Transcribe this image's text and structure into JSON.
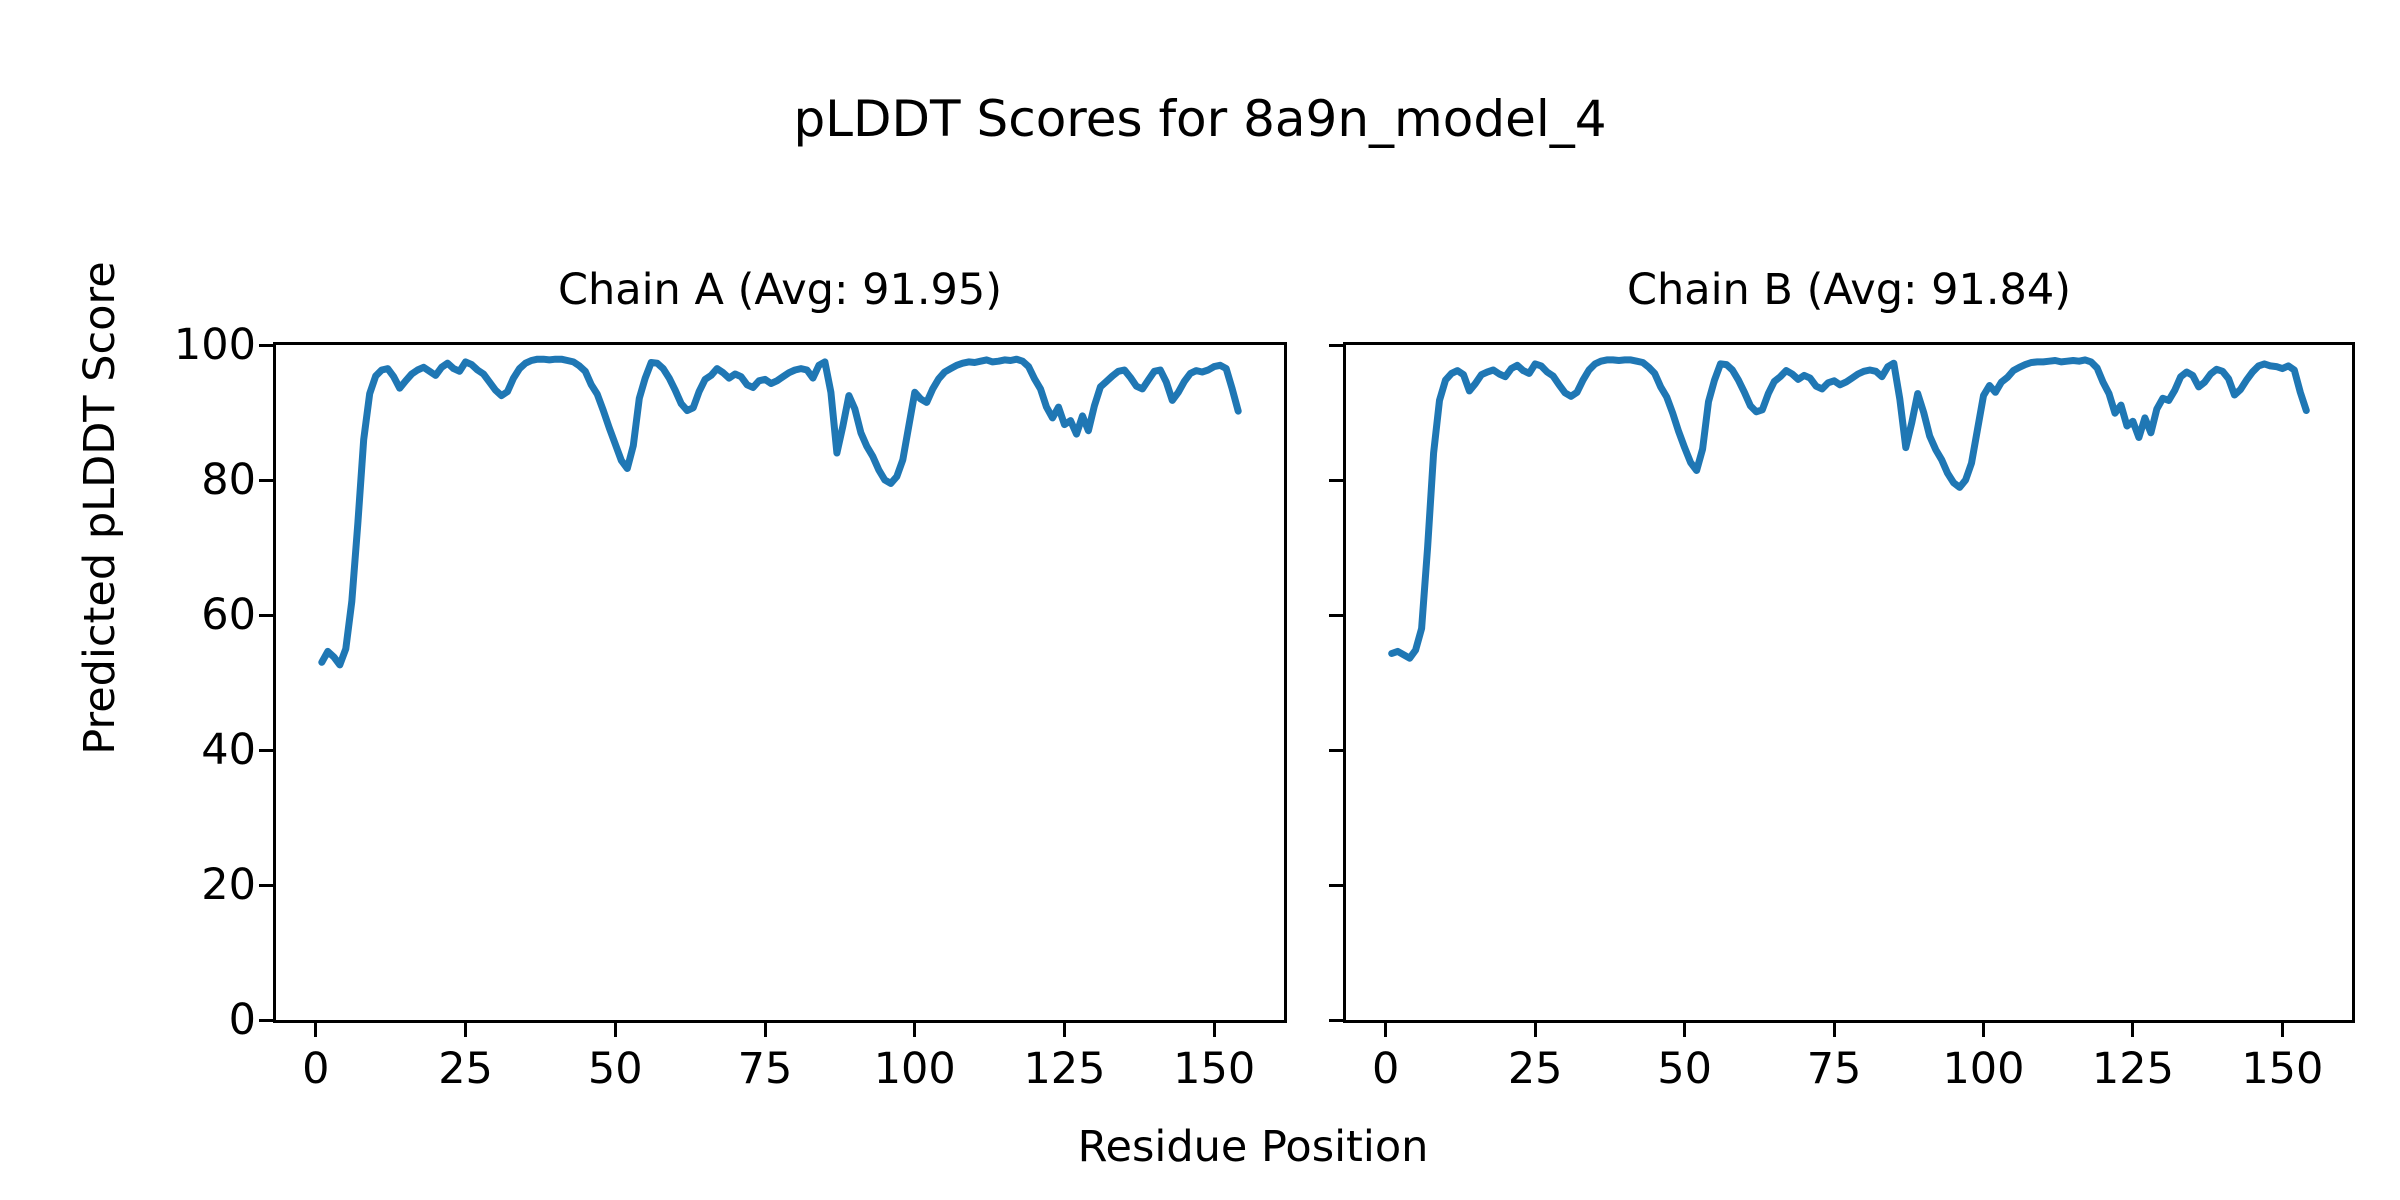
{
  "figure": {
    "title": "pLDDT Scores for 8a9n_model_4",
    "x_axis_label": "Residue Position",
    "y_axis_label": "Predicted pLDDT Score",
    "background_color": "#ffffff",
    "axis_color": "#000000"
  },
  "chart_data": [
    {
      "type": "line",
      "title": "Chain A (Avg: 91.95)",
      "chain": "A",
      "avg": 91.95,
      "line_color": "#1f77b4",
      "x_start": 1,
      "xlim": [
        -6.65,
        161.65
      ],
      "ylim": [
        0,
        100
      ],
      "x_ticks": [
        0,
        25,
        50,
        75,
        100,
        125,
        150
      ],
      "y_ticks": [
        0,
        20,
        40,
        60,
        80,
        100
      ],
      "y_tick_labels": true,
      "grid": false,
      "values": [
        53.0,
        54.6,
        53.8,
        52.6,
        55.0,
        62.0,
        73.5,
        86.0,
        92.8,
        95.4,
        96.3,
        96.5,
        95.3,
        93.6,
        94.7,
        95.7,
        96.3,
        96.7,
        96.1,
        95.5,
        96.7,
        97.3,
        96.5,
        96.1,
        97.5,
        97.1,
        96.3,
        95.7,
        94.5,
        93.3,
        92.5,
        93.1,
        95.1,
        96.5,
        97.3,
        97.7,
        97.9,
        97.9,
        97.8,
        97.9,
        97.9,
        97.7,
        97.5,
        96.9,
        96.1,
        94.1,
        92.7,
        90.3,
        87.7,
        85.3,
        82.9,
        81.7,
        85.1,
        92.1,
        95.1,
        97.4,
        97.3,
        96.5,
        95.1,
        93.3,
        91.3,
        90.3,
        90.7,
        93.1,
        94.9,
        95.5,
        96.5,
        95.9,
        95.1,
        95.7,
        95.3,
        94.1,
        93.7,
        94.7,
        94.9,
        94.3,
        94.7,
        95.3,
        95.9,
        96.3,
        96.5,
        96.3,
        95.1,
        97.0,
        97.5,
        93.0,
        84.0,
        88.0,
        92.5,
        90.5,
        87.0,
        85.0,
        83.5,
        81.5,
        80.0,
        79.5,
        80.5,
        83.0,
        88.0,
        93.0,
        92.0,
        91.5,
        93.5,
        95.0,
        96.0,
        96.5,
        97.0,
        97.3,
        97.5,
        97.4,
        97.6,
        97.8,
        97.5,
        97.6,
        97.8,
        97.7,
        97.9,
        97.6,
        96.8,
        95.0,
        93.5,
        90.8,
        89.2,
        90.8,
        88.2,
        88.8,
        86.8,
        89.5,
        87.3,
        91.0,
        93.8,
        94.6,
        95.4,
        96.1,
        96.3,
        95.2,
        93.9,
        93.5,
        94.8,
        96.1,
        96.3,
        94.5,
        91.8,
        93.0,
        94.6,
        95.8,
        96.2,
        96.0,
        96.3,
        96.8,
        97.0,
        96.5,
        93.5,
        90.2
      ]
    },
    {
      "type": "line",
      "title": "Chain B (Avg: 91.84)",
      "chain": "B",
      "avg": 91.84,
      "line_color": "#1f77b4",
      "x_start": 1,
      "xlim": [
        -6.65,
        161.65
      ],
      "ylim": [
        0,
        100
      ],
      "x_ticks": [
        0,
        25,
        50,
        75,
        100,
        125,
        150
      ],
      "y_ticks": [
        0,
        20,
        40,
        60,
        80,
        100
      ],
      "y_tick_labels": false,
      "grid": false,
      "values": [
        54.3,
        54.6,
        54.1,
        53.6,
        54.8,
        58.0,
        70.0,
        84.0,
        91.8,
        94.8,
        95.8,
        96.2,
        95.6,
        93.2,
        94.3,
        95.6,
        96.0,
        96.3,
        95.7,
        95.3,
        96.5,
        97.0,
        96.2,
        95.8,
        97.2,
        96.9,
        96.0,
        95.4,
        94.1,
        92.9,
        92.4,
        93.0,
        94.8,
        96.3,
        97.2,
        97.6,
        97.8,
        97.8,
        97.7,
        97.8,
        97.8,
        97.6,
        97.4,
        96.7,
        95.8,
        93.8,
        92.3,
        89.9,
        87.2,
        84.8,
        82.6,
        81.4,
        84.6,
        91.6,
        94.8,
        97.2,
        97.1,
        96.3,
        94.8,
        93.0,
        91.0,
        90.1,
        90.4,
        92.8,
        94.6,
        95.3,
        96.2,
        95.7,
        94.9,
        95.5,
        95.1,
        93.9,
        93.5,
        94.4,
        94.7,
        94.1,
        94.5,
        95.1,
        95.7,
        96.1,
        96.3,
        96.1,
        95.3,
        96.8,
        97.3,
        92.0,
        84.8,
        88.5,
        92.8,
        90.0,
        86.5,
        84.5,
        83.0,
        81.0,
        79.6,
        78.9,
        80.0,
        82.5,
        87.5,
        92.5,
        94.0,
        93.0,
        94.5,
        95.2,
        96.2,
        96.7,
        97.1,
        97.4,
        97.5,
        97.5,
        97.6,
        97.7,
        97.5,
        97.6,
        97.7,
        97.6,
        97.8,
        97.5,
        96.6,
        94.5,
        92.8,
        89.9,
        91.1,
        88.0,
        88.7,
        86.3,
        89.2,
        87.0,
        90.5,
        92.1,
        91.8,
        93.3,
        95.3,
        96.0,
        95.5,
        93.8,
        94.5,
        95.7,
        96.4,
        96.1,
        95.0,
        92.6,
        93.4,
        94.8,
        96.0,
        96.9,
        97.2,
        96.9,
        96.8,
        96.5,
        96.9,
        96.3,
        93.0,
        90.3
      ]
    }
  ]
}
